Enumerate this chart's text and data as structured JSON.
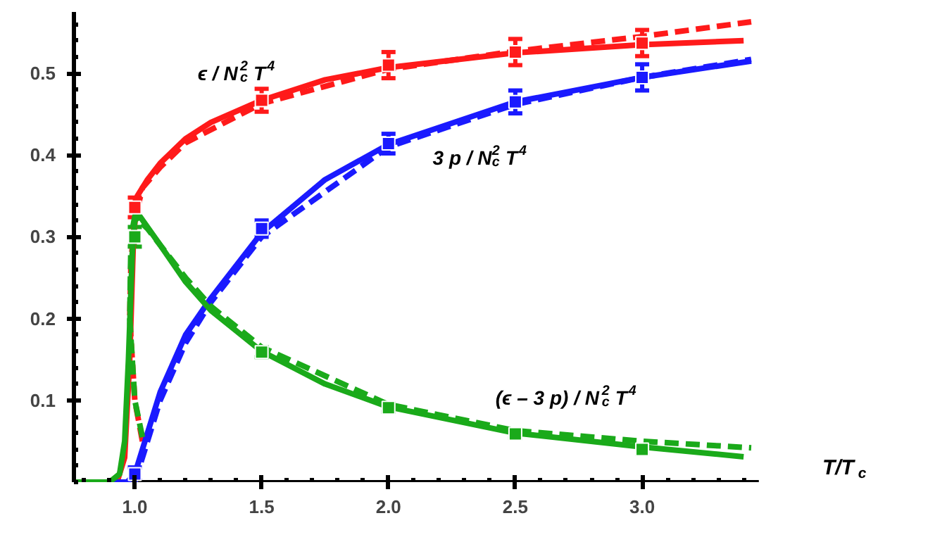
{
  "chart_data": {
    "type": "line",
    "xlabel": "T/T$_{c}$",
    "xlim": [
      0.76,
      3.46
    ],
    "ylim": [
      0,
      0.575
    ],
    "xticks": [
      {
        "value": 1.0,
        "label": "1.0"
      },
      {
        "value": 1.5,
        "label": "1.5"
      },
      {
        "value": 2.0,
        "label": "2.0"
      },
      {
        "value": 2.5,
        "label": "2.5"
      },
      {
        "value": 3.0,
        "label": "3.0"
      }
    ],
    "yticks": [
      0.1,
      0.2,
      0.3,
      0.4,
      0.5
    ],
    "grid": false,
    "series": [
      {
        "color": "#ff1a1a",
        "line_style": "solid",
        "x": [
          0.76,
          0.93,
          0.96,
          0.98,
          0.995,
          1.01,
          1.05,
          1.1,
          1.2,
          1.3,
          1.5,
          1.75,
          2.0,
          2.5,
          3.0,
          3.4
        ],
        "values": [
          0,
          0,
          0.03,
          0.15,
          0.3,
          0.35,
          0.37,
          0.39,
          0.42,
          0.44,
          0.467,
          0.492,
          0.507,
          0.525,
          0.535,
          0.54
        ]
      },
      {
        "color": "#ff1a1a",
        "line_style": "dashed",
        "x": [
          1.03,
          1.0,
          0.98,
          0.985,
          1.0,
          1.03,
          1.1,
          1.2,
          1.5,
          2.0,
          2.5,
          3.0,
          3.43
        ],
        "values": [
          0.05,
          0.1,
          0.2,
          0.27,
          0.32,
          0.36,
          0.385,
          0.415,
          0.463,
          0.505,
          0.527,
          0.545,
          0.563
        ]
      },
      {
        "color": "#1a1aff",
        "line_style": "solid",
        "x": [
          0.76,
          0.97,
          1.0,
          1.05,
          1.1,
          1.2,
          1.3,
          1.5,
          1.75,
          2.0,
          2.5,
          3.0,
          3.43
        ],
        "values": [
          0,
          0,
          0.01,
          0.06,
          0.11,
          0.18,
          0.225,
          0.305,
          0.37,
          0.413,
          0.465,
          0.495,
          0.515
        ]
      },
      {
        "color": "#1a1aff",
        "line_style": "dashed",
        "x": [
          1.0,
          1.05,
          1.1,
          1.2,
          1.3,
          1.5,
          2.0,
          2.5,
          3.0,
          3.43
        ],
        "values": [
          0,
          0.05,
          0.1,
          0.17,
          0.22,
          0.3,
          0.41,
          0.462,
          0.495,
          0.517
        ]
      },
      {
        "color": "#1aaa1a",
        "line_style": "solid",
        "x": [
          0.76,
          0.9,
          0.94,
          0.96,
          0.975,
          0.99,
          1.0,
          1.02,
          1.1,
          1.2,
          1.3,
          1.5,
          1.75,
          2.0,
          2.5,
          3.0,
          3.4
        ],
        "values": [
          0,
          0,
          0.01,
          0.05,
          0.15,
          0.28,
          0.32,
          0.325,
          0.29,
          0.245,
          0.21,
          0.16,
          0.12,
          0.092,
          0.06,
          0.043,
          0.031
        ]
      },
      {
        "color": "#1aaa1a",
        "line_style": "dashed",
        "x": [
          1.03,
          1.0,
          0.98,
          0.985,
          1.0,
          1.05,
          1.1,
          1.2,
          1.3,
          1.5,
          2.0,
          2.5,
          3.0,
          3.43
        ],
        "values": [
          0.055,
          0.1,
          0.2,
          0.3,
          0.325,
          0.31,
          0.29,
          0.25,
          0.215,
          0.165,
          0.095,
          0.063,
          0.05,
          0.042
        ]
      },
      {
        "type": "scatter",
        "marker": "square",
        "color": "#ff1a1a",
        "x": [
          1.0,
          1.5,
          2.0,
          2.5,
          3.0
        ],
        "values": [
          0.336,
          0.467,
          0.51,
          0.526,
          0.537
        ],
        "errors": [
          0.012,
          0.014,
          0.016,
          0.016,
          0.016
        ]
      },
      {
        "type": "scatter",
        "marker": "square",
        "color": "#1a1aff",
        "x": [
          1.0,
          1.5,
          2.0,
          2.5,
          3.0
        ],
        "values": [
          0.01,
          0.31,
          0.414,
          0.465,
          0.495
        ],
        "errors": [
          0.008,
          0.01,
          0.012,
          0.014,
          0.016
        ]
      },
      {
        "type": "scatter",
        "marker": "square",
        "color": "#1aaa1a",
        "x": [
          1.0,
          1.5,
          2.0,
          2.5,
          3.0
        ],
        "values": [
          0.3,
          0.159,
          0.091,
          0.059,
          0.04
        ],
        "errors": [
          0.012,
          0.006,
          0.005,
          0.005,
          0.005
        ]
      }
    ],
    "annotations": [
      "ϵ / N$_{c}$$^{2}$ T$^{4}$",
      "3 p / N$_{c}$$^{2}$ T$^{4}$",
      "(ϵ – 3 p) / N$_{c}$$^{2}$ T$^{4}$"
    ]
  }
}
